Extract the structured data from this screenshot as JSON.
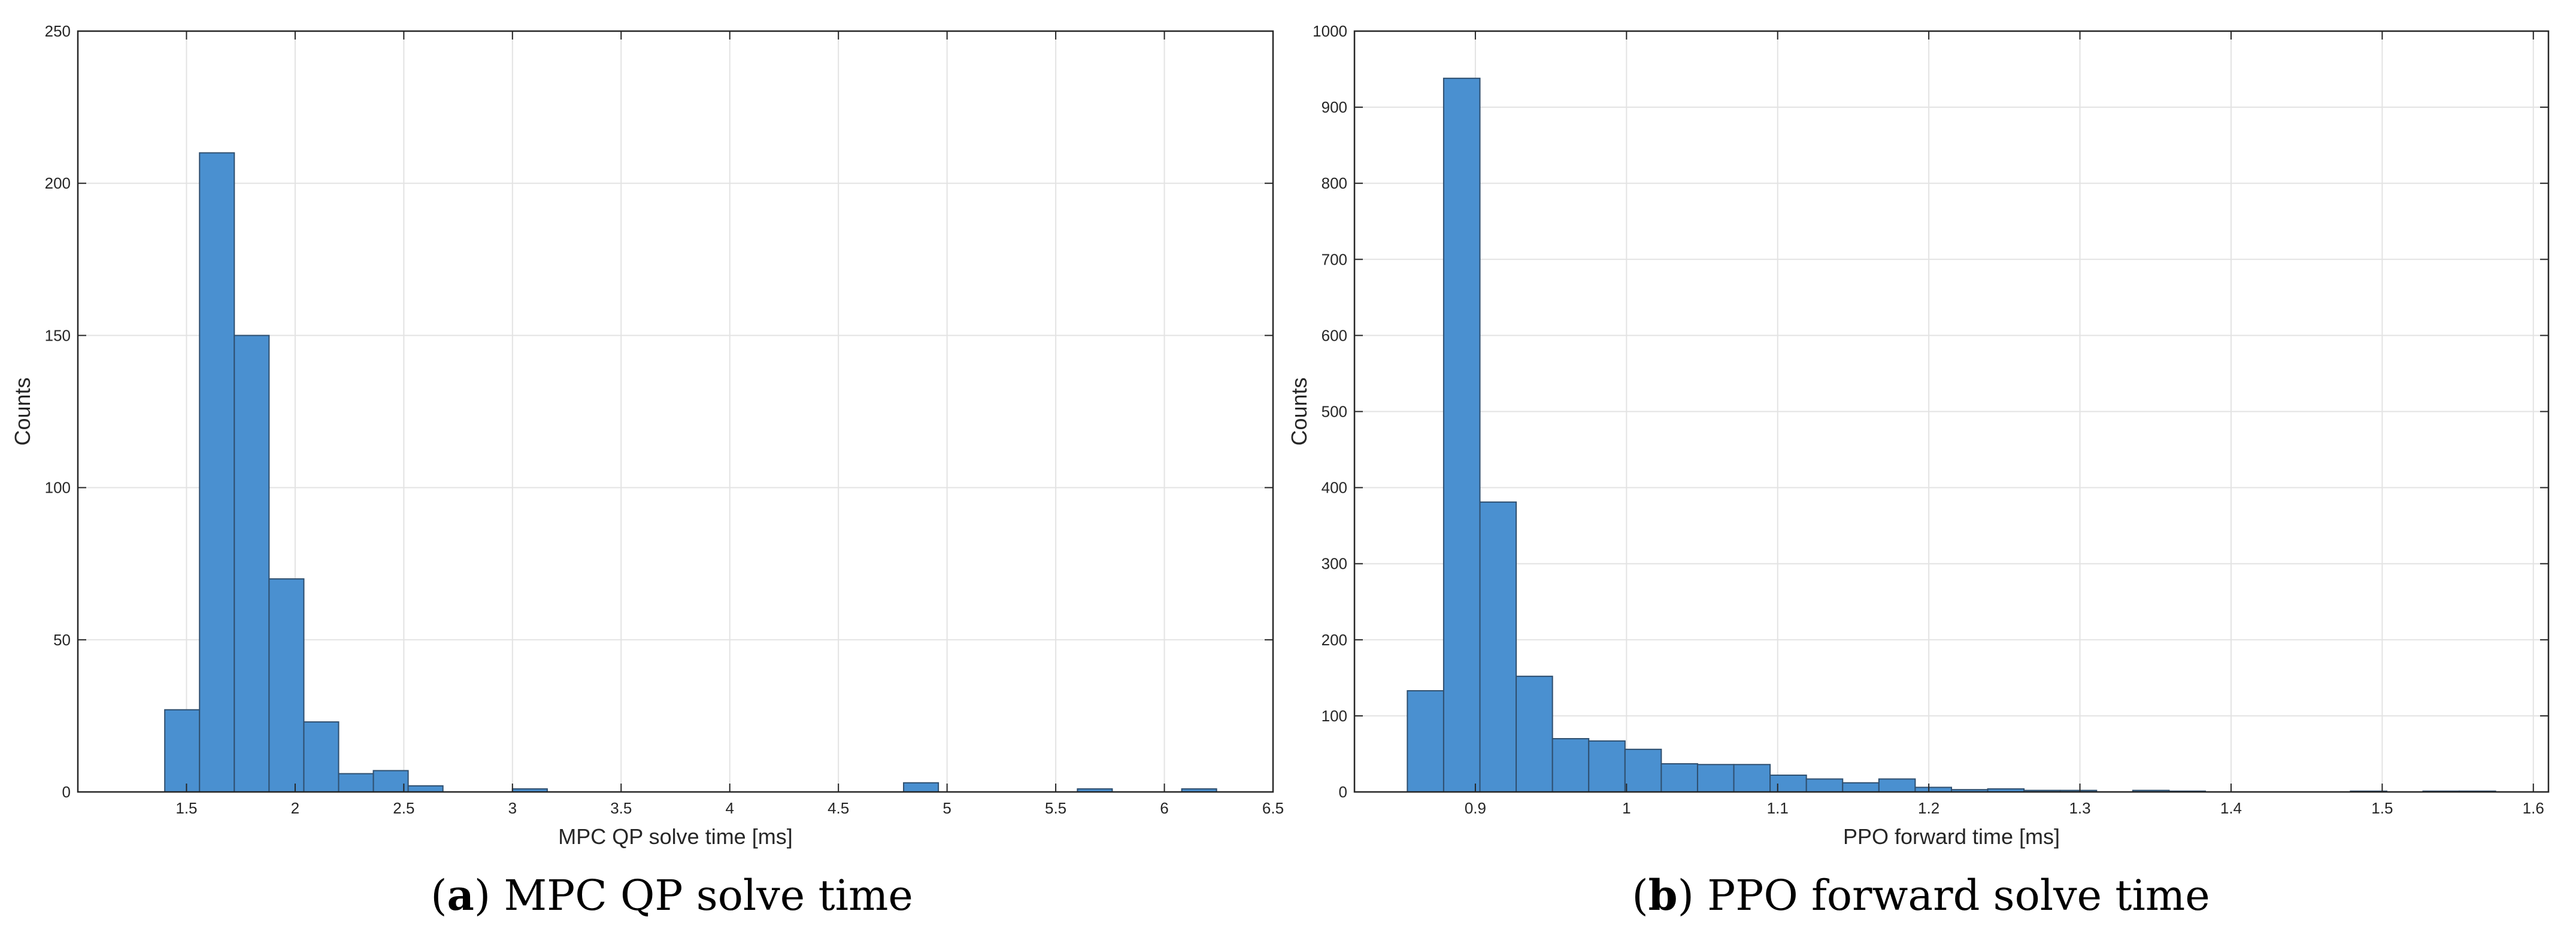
{
  "chart_data": [
    {
      "type": "bar",
      "title": "",
      "xlabel": "MPC QP solve time [ms]",
      "ylabel": "Counts",
      "xlim": [
        1.0,
        6.5
      ],
      "ylim": [
        0,
        250
      ],
      "xticks": [
        1.5,
        2,
        2.5,
        3,
        3.5,
        4,
        4.5,
        5,
        5.5,
        6,
        6.5
      ],
      "yticks": [
        0,
        50,
        100,
        150,
        200,
        250
      ],
      "grid": true,
      "bar_color": "#4a90d0",
      "bins": [
        {
          "x0": 1.4,
          "x1": 1.56,
          "count": 27
        },
        {
          "x0": 1.56,
          "x1": 1.72,
          "count": 210
        },
        {
          "x0": 1.72,
          "x1": 1.88,
          "count": 150
        },
        {
          "x0": 1.88,
          "x1": 2.04,
          "count": 70
        },
        {
          "x0": 2.04,
          "x1": 2.2,
          "count": 23
        },
        {
          "x0": 2.2,
          "x1": 2.36,
          "count": 6
        },
        {
          "x0": 2.36,
          "x1": 2.52,
          "count": 7
        },
        {
          "x0": 2.52,
          "x1": 2.68,
          "count": 2
        },
        {
          "x0": 3.0,
          "x1": 3.16,
          "count": 1
        },
        {
          "x0": 4.8,
          "x1": 4.96,
          "count": 3
        },
        {
          "x0": 5.6,
          "x1": 5.76,
          "count": 1
        },
        {
          "x0": 6.08,
          "x1": 6.24,
          "count": 1
        }
      ]
    },
    {
      "type": "bar",
      "title": "",
      "xlabel": "PPO forward time [ms]",
      "ylabel": "Counts",
      "xlim": [
        0.82,
        1.61
      ],
      "ylim": [
        0,
        1000
      ],
      "xticks": [
        0.9,
        1,
        1.1,
        1.2,
        1.3,
        1.4,
        1.5,
        1.6
      ],
      "yticks": [
        0,
        100,
        200,
        300,
        400,
        500,
        600,
        700,
        800,
        900,
        1000
      ],
      "grid": true,
      "bar_color": "#4a90d0",
      "bins": [
        {
          "x0": 0.855,
          "x1": 0.879,
          "count": 133
        },
        {
          "x0": 0.879,
          "x1": 0.903,
          "count": 938
        },
        {
          "x0": 0.903,
          "x1": 0.927,
          "count": 381
        },
        {
          "x0": 0.927,
          "x1": 0.951,
          "count": 152
        },
        {
          "x0": 0.951,
          "x1": 0.975,
          "count": 70
        },
        {
          "x0": 0.975,
          "x1": 0.999,
          "count": 67
        },
        {
          "x0": 0.999,
          "x1": 1.023,
          "count": 56
        },
        {
          "x0": 1.023,
          "x1": 1.047,
          "count": 37
        },
        {
          "x0": 1.047,
          "x1": 1.071,
          "count": 36
        },
        {
          "x0": 1.071,
          "x1": 1.095,
          "count": 36
        },
        {
          "x0": 1.095,
          "x1": 1.119,
          "count": 22
        },
        {
          "x0": 1.119,
          "x1": 1.143,
          "count": 17
        },
        {
          "x0": 1.143,
          "x1": 1.167,
          "count": 12
        },
        {
          "x0": 1.167,
          "x1": 1.191,
          "count": 17
        },
        {
          "x0": 1.191,
          "x1": 1.215,
          "count": 6
        },
        {
          "x0": 1.215,
          "x1": 1.239,
          "count": 3
        },
        {
          "x0": 1.239,
          "x1": 1.263,
          "count": 4
        },
        {
          "x0": 1.263,
          "x1": 1.287,
          "count": 2
        },
        {
          "x0": 1.287,
          "x1": 1.311,
          "count": 2
        },
        {
          "x0": 1.335,
          "x1": 1.359,
          "count": 2
        },
        {
          "x0": 1.359,
          "x1": 1.383,
          "count": 1
        },
        {
          "x0": 1.479,
          "x1": 1.503,
          "count": 1
        },
        {
          "x0": 1.527,
          "x1": 1.551,
          "count": 1
        },
        {
          "x0": 1.551,
          "x1": 1.575,
          "count": 1
        }
      ]
    }
  ],
  "captions": [
    {
      "letter": "a",
      "text": ") MPC QP solve time"
    },
    {
      "letter": "b",
      "text": ") PPO forward solve time"
    }
  ]
}
